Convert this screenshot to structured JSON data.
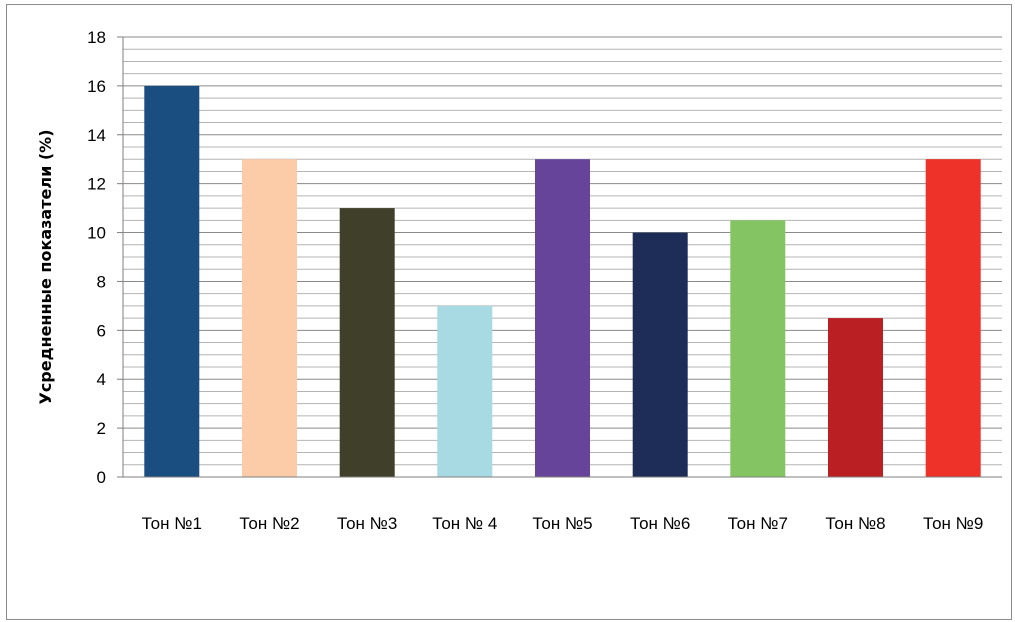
{
  "chart_data": {
    "type": "bar",
    "title": "",
    "xlabel": "",
    "ylabel": "Усредненные показатели (%)",
    "ylim": [
      0,
      18
    ],
    "yticks": [
      0,
      2,
      4,
      6,
      8,
      10,
      12,
      14,
      16,
      18
    ],
    "minor_grid_step": 0.5,
    "grid": true,
    "legend": "none",
    "categories": [
      "Тон №1",
      "Тон №2",
      "Тон №3",
      "Тон № 4",
      "Тон №5",
      "Тон №6",
      "Тон №7",
      "Тон №8",
      "Тон №9"
    ],
    "values": [
      16,
      13,
      11,
      7,
      13,
      10,
      10.5,
      6.5,
      13
    ],
    "colors": [
      "#1a4e80",
      "#fccca8",
      "#40402a",
      "#a8dae4",
      "#65449a",
      "#1e2d58",
      "#84c462",
      "#b91f23",
      "#ee3129"
    ]
  }
}
